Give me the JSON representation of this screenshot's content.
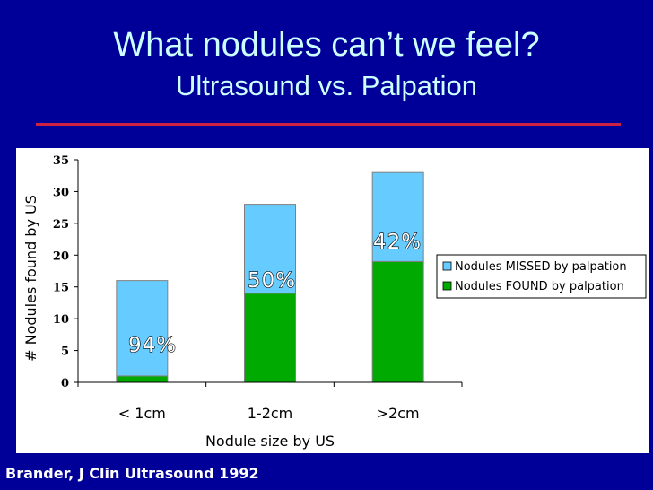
{
  "slide": {
    "title": "What nodules can’t we feel?",
    "subtitle": "Ultrasound vs. Palpation",
    "source": "Brander, J Clin Ultrasound 1992"
  },
  "chart_data": {
    "type": "bar",
    "stacked": true,
    "categories": [
      "< 1cm",
      "1-2cm",
      ">2cm"
    ],
    "series": [
      {
        "name": "Nodules FOUND by palpation",
        "values": [
          1,
          14,
          19
        ],
        "color": "#00aa00"
      },
      {
        "name": "Nodules MISSED by palpation",
        "values": [
          15,
          14,
          14
        ],
        "color": "#66ccff"
      }
    ],
    "annotations": [
      "94%",
      "50%",
      "42%"
    ],
    "xlabel": "Nodule size by US",
    "ylabel": "# Nodules found by US",
    "ylim": [
      0,
      35
    ],
    "yticks": [
      0,
      5,
      10,
      15,
      20,
      25,
      30,
      35
    ],
    "legend_position": "right",
    "colors": {
      "background": "#000099",
      "plot_area": "#ffffff",
      "text_light": "#ccffff",
      "divider": "#cc2244"
    }
  }
}
